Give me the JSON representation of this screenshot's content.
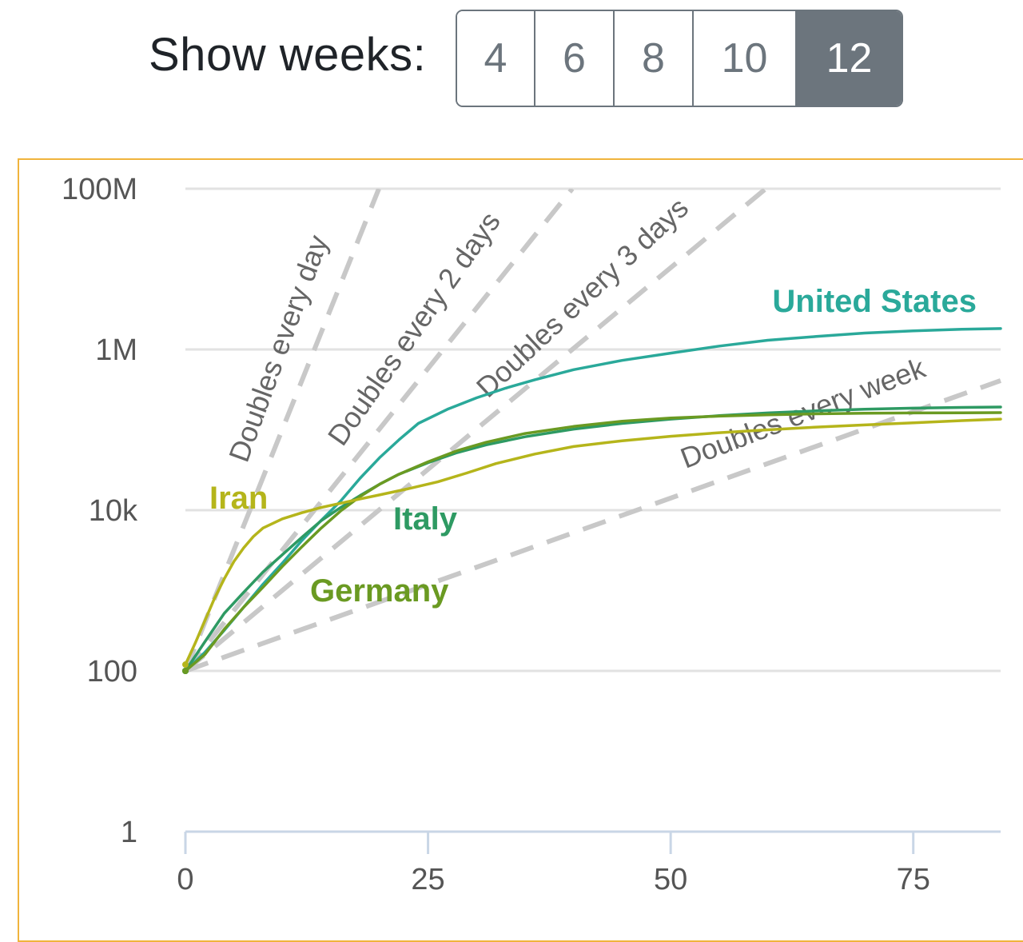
{
  "controls": {
    "label": "Show weeks:",
    "options": [
      "4",
      "6",
      "8",
      "10",
      "12"
    ],
    "selected": "12"
  },
  "chart_data": {
    "type": "line",
    "title": "",
    "xlabel": "",
    "ylabel": "",
    "y_scale": "log",
    "xlim": [
      0,
      84
    ],
    "ylim": [
      1,
      100000000
    ],
    "x_ticks": [
      0,
      25,
      50,
      75
    ],
    "x_tick_labels": [
      "0",
      "25",
      "50",
      "75"
    ],
    "y_ticks": [
      1,
      100,
      10000,
      1000000,
      100000000
    ],
    "y_tick_labels": [
      "1",
      "100",
      "10k",
      "1M",
      "100M"
    ],
    "grid": true,
    "colors": {
      "united_states": "#2aa99a",
      "italy": "#2e9a63",
      "germany": "#6a9a22",
      "iran": "#b5b51b",
      "reference": "#c8c8c8",
      "frame": "#f0b43c",
      "active_button": "#6c757d"
    },
    "series": [
      {
        "name": "United States",
        "color": "#2aa99a",
        "x": [
          0,
          2,
          4,
          6,
          8,
          10,
          12,
          14,
          16,
          18,
          20,
          22,
          24,
          27,
          30,
          33,
          36,
          40,
          45,
          50,
          55,
          60,
          65,
          70,
          75,
          80,
          84
        ],
        "y": [
          100,
          170,
          320,
          620,
          1200,
          2200,
          4200,
          7500,
          13000,
          25000,
          45000,
          75000,
          120000,
          180000,
          250000,
          330000,
          420000,
          560000,
          730000,
          900000,
          1100000,
          1300000,
          1450000,
          1600000,
          1700000,
          1780000,
          1820000
        ]
      },
      {
        "name": "Italy",
        "color": "#2e9a63",
        "x": [
          0,
          2,
          4,
          6,
          8,
          10,
          12,
          14,
          16,
          18,
          20,
          22,
          25,
          28,
          31,
          35,
          40,
          45,
          50,
          55,
          60,
          65,
          70,
          75,
          80,
          84
        ],
        "y": [
          100,
          230,
          520,
          950,
          1700,
          2800,
          4600,
          7400,
          10800,
          15200,
          21000,
          28000,
          39000,
          52000,
          65000,
          82000,
          102000,
          120000,
          136000,
          150000,
          162000,
          172000,
          180000,
          186000,
          190000,
          192000
        ]
      },
      {
        "name": "Germany",
        "color": "#6a9a22",
        "x": [
          0,
          2,
          4,
          6,
          8,
          10,
          12,
          14,
          16,
          18,
          20,
          22,
          25,
          28,
          31,
          35,
          40,
          45,
          50,
          55,
          60,
          65,
          70,
          75,
          80,
          84
        ],
        "y": [
          100,
          160,
          330,
          620,
          1100,
          2000,
          3500,
          6000,
          9800,
          14800,
          21000,
          28000,
          40000,
          55000,
          70000,
          90000,
          110000,
          128000,
          140000,
          148000,
          154000,
          158000,
          161000,
          162000,
          163000,
          163500
        ]
      },
      {
        "name": "Iran",
        "color": "#b5b51b",
        "x": [
          0,
          1,
          2,
          3,
          4,
          5,
          6,
          7,
          8,
          10,
          12,
          14,
          16,
          18,
          20,
          23,
          26,
          29,
          32,
          36,
          40,
          45,
          50,
          55,
          60,
          65,
          70,
          75,
          80,
          84
        ],
        "y": [
          120,
          220,
          420,
          800,
          1400,
          2300,
          3400,
          4700,
          6000,
          7800,
          9300,
          10800,
          12200,
          13800,
          15500,
          18500,
          22500,
          29000,
          38000,
          50000,
          62000,
          73000,
          83000,
          92000,
          100000,
          108000,
          115000,
          122000,
          130000,
          136000
        ]
      }
    ],
    "reference_lines": [
      {
        "label": "Doubles every day",
        "doubling_days": 1
      },
      {
        "label": "Doubles every 2 days",
        "doubling_days": 2
      },
      {
        "label": "Doubles every 3 days",
        "doubling_days": 3
      },
      {
        "label": "Doubles every week",
        "doubling_days": 7
      }
    ],
    "annotations": [
      "United States",
      "Italy",
      "Germany",
      "Iran"
    ]
  }
}
